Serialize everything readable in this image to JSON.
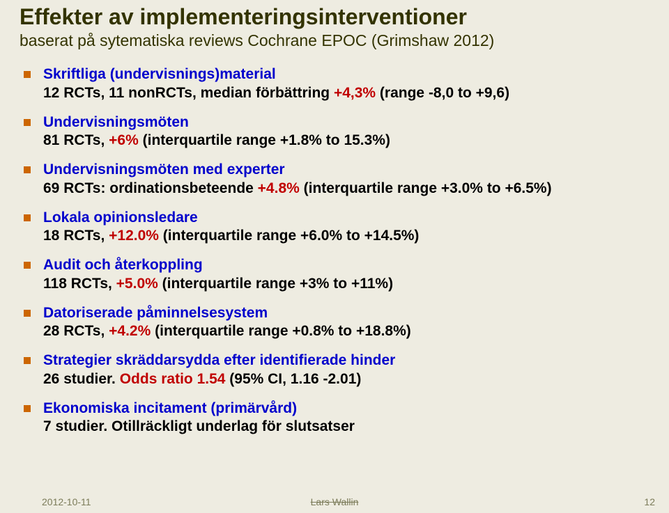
{
  "colors": {
    "background": "#eeece1",
    "title": "#333300",
    "bullet": "#cc6600",
    "heading": "#0000cc",
    "detail": "#000000",
    "highlight": "#c00000",
    "footer": "#7c7c5a"
  },
  "typography": {
    "title_fontsize": 32,
    "subtitle_fontsize": 23,
    "body_fontsize": 21,
    "footer_fontsize": 14,
    "font_family": "Arial"
  },
  "title": "Effekter av implementeringsinterventioner",
  "subtitle": "baserat på sytematiska reviews Cochrane EPOC  (Grimshaw 2012)",
  "items": [
    {
      "heading": "Skriftliga (undervisnings)material",
      "detail_pre": "12 RCTs, 11 nonRCTs, median förbättring ",
      "red": "+4,3%",
      "detail_post": " (range -8,0 to +9,6)"
    },
    {
      "heading": "Undervisningsmöten",
      "detail_pre": "81 RCTs, ",
      "red": "+6%",
      "detail_post": " (interquartile range +1.8% to 15.3%)"
    },
    {
      "heading": "Undervisningsmöten med experter",
      "detail_pre": "69 RCTs: ordinationsbeteende ",
      "red": "+4.8%",
      "detail_post": " (interquartile range +3.0% to +6.5%)"
    },
    {
      "heading": "Lokala opinionsledare",
      "detail_pre": "18 RCTs, ",
      "red": "+12.0%",
      "detail_post": " (interquartile range +6.0% to +14.5%)"
    },
    {
      "heading": "Audit och återkoppling",
      "detail_pre": "118 RCTs,  ",
      "red": "+5.0%",
      "detail_post": " (interquartile range +3% to +11%)"
    },
    {
      "heading": "Datoriserade påminnelsesystem",
      "detail_pre": "28 RCTs, ",
      "red": "+4.2%",
      "detail_post": " (interquartile range +0.8% to +18.8%)"
    },
    {
      "heading": "Strategier skräddarsydda efter identifierade hinder",
      "detail_pre": "26 studier. ",
      "red": "Odds ratio 1.54",
      "detail_post": " (95% CI, 1.16 -2.01)"
    },
    {
      "heading": "Ekonomiska incitament (primärvård)",
      "detail_pre": "7 studier. Otillräckligt underlag för slutsatser",
      "red": "",
      "detail_post": ""
    }
  ],
  "footer": {
    "date": "2012-10-11",
    "author": "Lars Wallin",
    "pagenum": "12"
  }
}
